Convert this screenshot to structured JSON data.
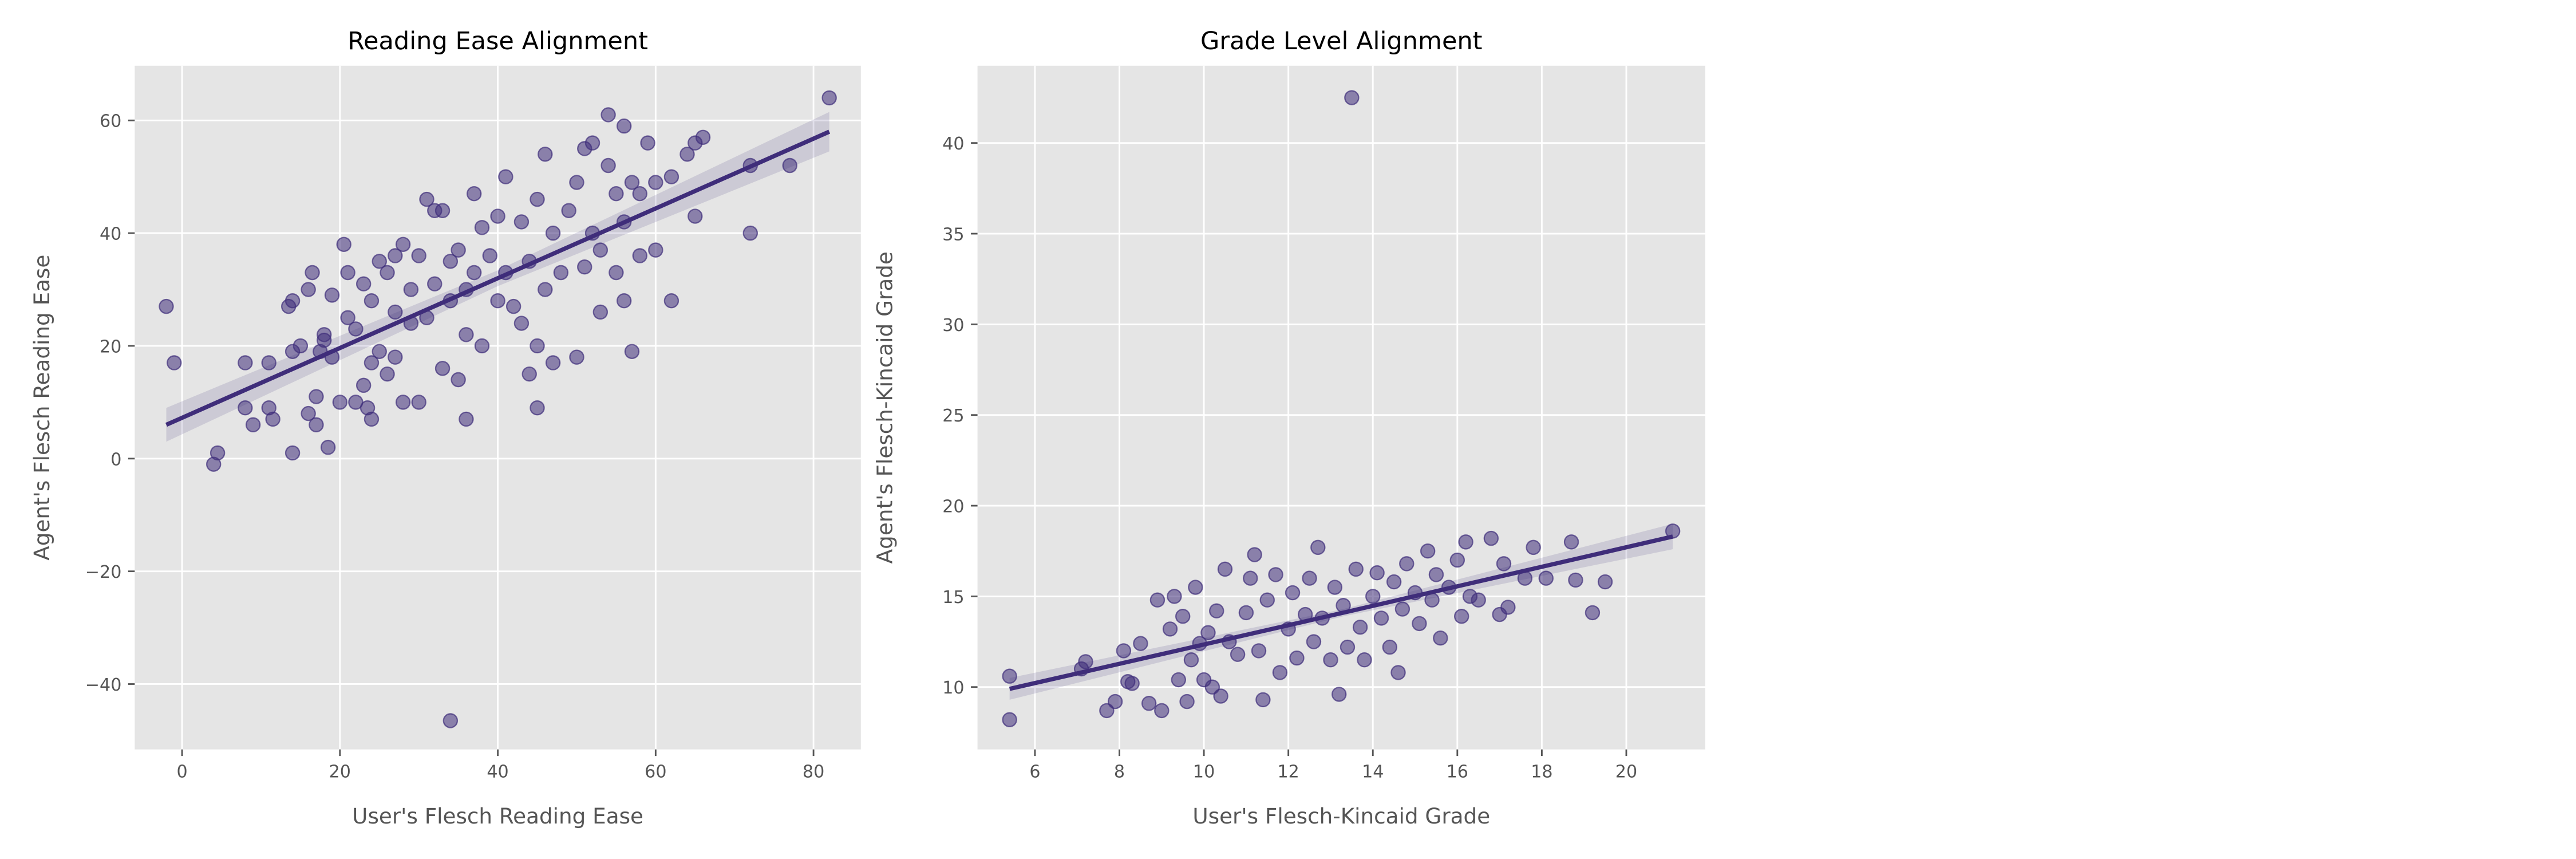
{
  "chart_data": [
    {
      "type": "scatter",
      "title": "Reading Ease Alignment",
      "x_label": "User's Flesch Reading Ease",
      "y_label": "Agent's Flesch Reading Ease",
      "color": "#3f2d7a",
      "grid": true,
      "xlim": [
        -6,
        86
      ],
      "ylim": [
        -51.6,
        69.7
      ],
      "xticks": [
        0,
        20,
        40,
        60,
        80
      ],
      "yticks": [
        {
          "value": -40,
          "label": "−40"
        },
        {
          "value": -20,
          "label": "−20"
        },
        0,
        20,
        40,
        60
      ],
      "points": {
        "x": [
          -2,
          -1,
          4,
          4.5,
          8,
          8,
          9,
          11,
          11,
          11.5,
          13.5,
          14,
          14,
          14,
          15,
          16,
          16,
          16.5,
          17,
          17,
          17.5,
          18,
          18,
          18.5,
          19,
          19,
          20,
          20.5,
          21,
          21,
          22,
          22,
          23,
          23,
          23.5,
          24,
          24,
          24,
          25,
          25,
          26,
          26,
          27,
          27,
          27,
          28,
          28,
          29,
          29,
          30,
          30,
          31,
          31,
          32,
          32,
          33,
          33,
          34,
          34,
          34,
          35,
          35,
          36,
          36,
          36,
          37,
          37,
          38,
          38,
          39,
          40,
          40,
          41,
          41,
          42,
          43,
          43,
          44,
          44,
          45,
          45,
          45,
          46,
          46,
          47,
          47,
          48,
          49,
          50,
          50,
          51,
          51,
          52,
          52,
          53,
          53,
          54,
          54,
          55,
          55,
          56,
          56,
          56,
          57,
          57,
          58,
          58,
          59,
          60,
          60,
          62,
          62,
          64,
          65,
          65,
          66,
          72,
          72,
          77,
          82
        ],
        "y": [
          27,
          17,
          -1,
          1,
          17,
          9,
          6,
          17,
          9,
          7,
          27,
          28,
          1,
          19,
          20,
          8,
          30,
          33,
          6,
          11,
          19,
          21,
          22,
          2,
          29,
          18,
          10,
          38,
          33,
          25,
          10,
          23,
          31,
          13,
          9,
          7,
          17,
          28,
          35,
          19,
          15,
          33,
          36,
          26,
          18,
          38,
          10,
          30,
          24,
          10,
          36,
          46,
          25,
          44,
          31,
          44,
          16,
          35,
          28,
          -46.5,
          37,
          14,
          30,
          7,
          22,
          47,
          33,
          41,
          20,
          36,
          43,
          28,
          50,
          33,
          27,
          42,
          24,
          35,
          15,
          46,
          9,
          20,
          54,
          30,
          40,
          17,
          33,
          44,
          49,
          18,
          34,
          55,
          56,
          40,
          26,
          37,
          61,
          52,
          47,
          33,
          59,
          42,
          28,
          19,
          49,
          36,
          47,
          56,
          37,
          49,
          28,
          50,
          54,
          56,
          43,
          57,
          40,
          52,
          52,
          64
        ]
      },
      "fit": {
        "x": [
          -2,
          40,
          82
        ],
        "y": [
          6,
          32,
          58
        ],
        "lower": [
          3,
          30.6,
          54.5
        ],
        "upper": [
          9,
          33.4,
          61.5
        ]
      }
    },
    {
      "type": "scatter",
      "title": "Grade Level Alignment",
      "x_label": "User's Flesch-Kincaid Grade",
      "y_label": "Agent's Flesch-Kincaid Grade",
      "color": "#3f2d7a",
      "grid": true,
      "xlim": [
        4.64,
        21.87
      ],
      "ylim": [
        6.56,
        44.26
      ],
      "xticks": [
        6,
        8,
        10,
        12,
        14,
        16,
        18,
        20
      ],
      "yticks": [
        10,
        15,
        20,
        25,
        30,
        35,
        40
      ],
      "points": {
        "x": [
          5.4,
          5.4,
          7.1,
          7.2,
          7.7,
          7.9,
          8.1,
          8.2,
          8.3,
          8.5,
          8.7,
          8.9,
          9.0,
          9.2,
          9.3,
          9.4,
          9.5,
          9.6,
          9.7,
          9.8,
          9.9,
          10,
          10.1,
          10.2,
          10.3,
          10.4,
          10.5,
          10.6,
          10.8,
          11,
          11.1,
          11.2,
          11.3,
          11.4,
          11.5,
          11.7,
          11.8,
          12,
          12.1,
          12.2,
          12.4,
          12.5,
          12.6,
          12.7,
          12.8,
          13,
          13.1,
          13.2,
          13.3,
          13.4,
          13.5,
          13.6,
          13.7,
          13.8,
          14,
          14.1,
          14.2,
          14.4,
          14.5,
          14.6,
          14.7,
          14.8,
          15,
          15.1,
          15.3,
          15.4,
          15.5,
          15.6,
          15.8,
          16,
          16.1,
          16.2,
          16.3,
          16.5,
          16.8,
          17,
          17.1,
          17.2,
          17.6,
          17.8,
          18.1,
          18.7,
          18.8,
          19.2,
          19.5,
          21.1
        ],
        "y": [
          10.6,
          8.2,
          11,
          11.4,
          8.7,
          9.2,
          12,
          10.3,
          10.2,
          12.4,
          9.1,
          14.8,
          8.7,
          13.2,
          15,
          10.4,
          13.9,
          9.2,
          11.5,
          15.5,
          12.4,
          10.4,
          13,
          10,
          14.2,
          9.5,
          16.5,
          12.5,
          11.8,
          14.1,
          16,
          17.3,
          12,
          9.3,
          14.8,
          16.2,
          10.8,
          13.2,
          15.2,
          11.6,
          14,
          16,
          12.5,
          17.7,
          13.8,
          11.5,
          15.5,
          9.6,
          14.5,
          12.2,
          42.5,
          16.5,
          13.3,
          11.5,
          15,
          16.3,
          13.8,
          12.2,
          15.8,
          10.8,
          14.3,
          16.8,
          15.2,
          13.5,
          17.5,
          14.8,
          16.2,
          12.7,
          15.5,
          17,
          13.9,
          18,
          15,
          14.8,
          18.2,
          14,
          16.8,
          14.4,
          16,
          17.7,
          16,
          18,
          15.9,
          14.1,
          15.8,
          18.6
        ]
      },
      "fit": {
        "x": [
          5.4,
          13.3,
          21.1
        ],
        "y": [
          9.9,
          14.1,
          18.3
        ],
        "lower": [
          9.3,
          13.9,
          17.6
        ],
        "upper": [
          10.5,
          14.3,
          19
        ]
      }
    }
  ]
}
